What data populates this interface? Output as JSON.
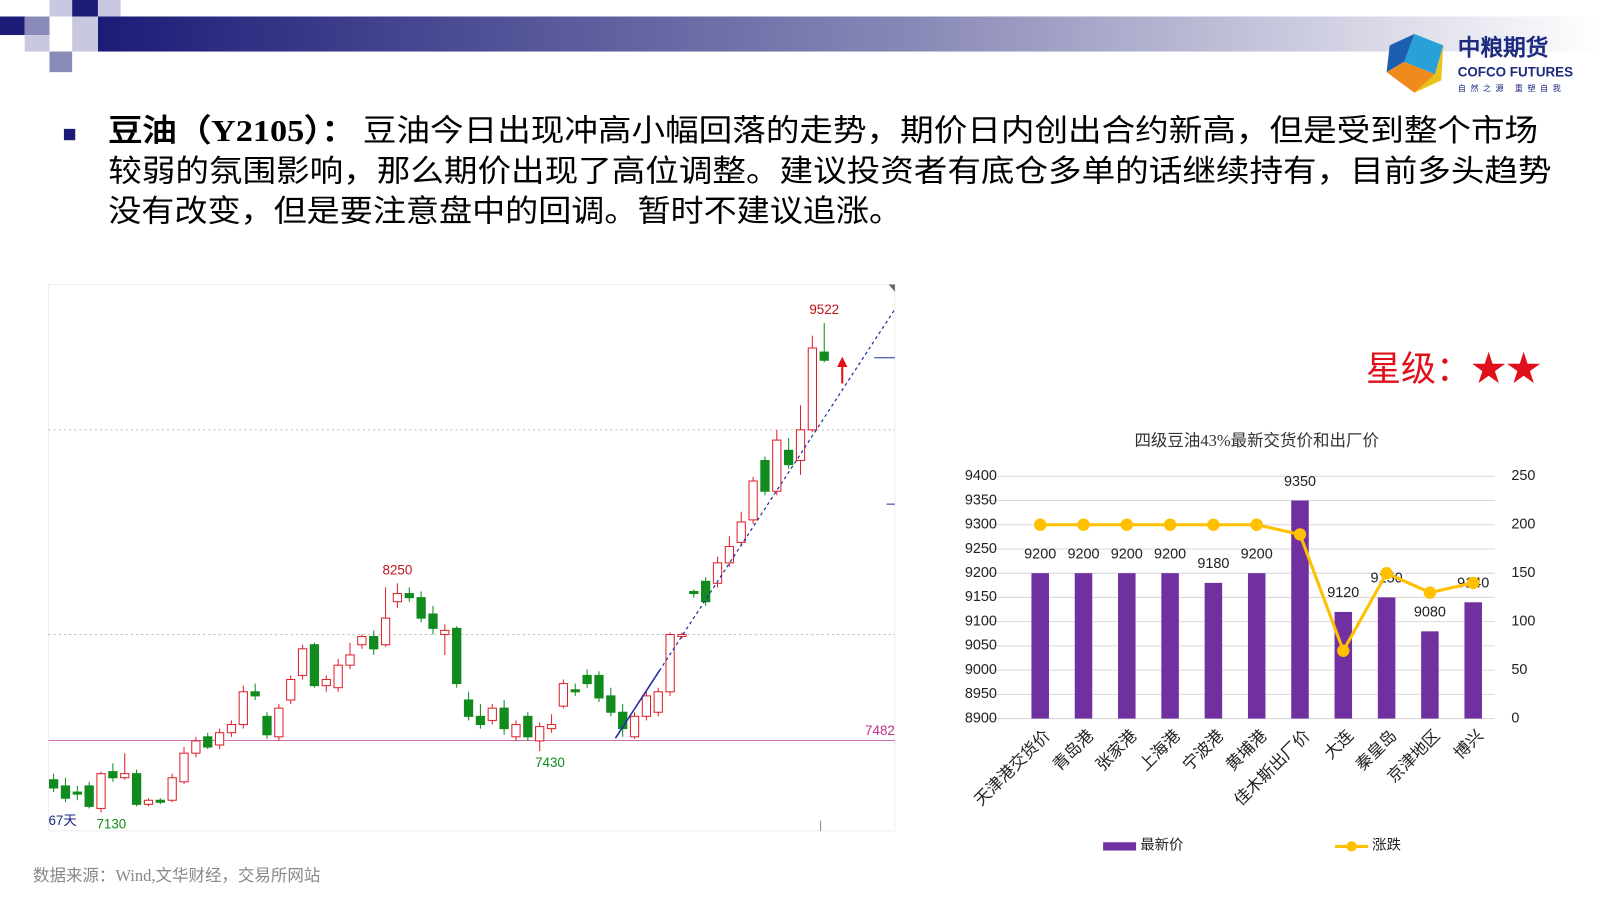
{
  "header": {
    "logo_cn": "中粮期货",
    "logo_en": "COFCO FUTURES",
    "logo_slogan": "自然之源 重塑自我"
  },
  "bullet": {
    "heading": "豆油（Y2105）：",
    "lines": [
      "豆油今日出现冲高小幅回落的走势，期价日内创出合约新高，但是受到整个市场",
      "较弱的氛围影响，那么期价出现了高位调整。建议投资者有底仓多单的话继续持有，目前多头趋势",
      "没有改变，但是要注意盘中的回调。暂时不建议追涨。"
    ]
  },
  "rating": "星级：★★",
  "source": "数据来源：Wind,文华财经，交易所网站",
  "chart_data": [
    {
      "type": "candlestick",
      "open": [
        7290,
        7260,
        7230,
        7260,
        7150,
        7330,
        7300,
        7320,
        7170,
        7190,
        7190,
        7280,
        7420,
        7500,
        7460,
        7520,
        7560,
        7720,
        7600,
        7500,
        7680,
        7800,
        7950,
        7750,
        7740,
        7850,
        7950,
        7990,
        7950,
        8160,
        8200,
        8180,
        8100,
        8000,
        8030,
        7680,
        7600,
        7580,
        7640,
        7500,
        7600,
        7480,
        7540,
        7650,
        7730,
        7800,
        7800,
        7700,
        7620,
        7500,
        7600,
        7620,
        7720,
        7990,
        8210,
        8260,
        8250,
        8350,
        8450,
        8560,
        8850,
        8700,
        8900,
        8850,
        9000,
        9380
      ],
      "close": [
        7250,
        7200,
        7220,
        7160,
        7320,
        7300,
        7320,
        7170,
        7190,
        7180,
        7300,
        7420,
        7480,
        7450,
        7520,
        7560,
        7720,
        7700,
        7510,
        7640,
        7780,
        7930,
        7750,
        7780,
        7850,
        7900,
        7990,
        7930,
        8080,
        8200,
        8180,
        8080,
        8030,
        8020,
        7760,
        7600,
        7560,
        7640,
        7540,
        7560,
        7500,
        7550,
        7560,
        7760,
        7720,
        7760,
        7690,
        7620,
        7540,
        7600,
        7700,
        7720,
        8000,
        8000,
        8200,
        8160,
        8350,
        8430,
        8550,
        8750,
        8700,
        8950,
        8830,
        9000,
        9400,
        9340
      ],
      "high": [
        7320,
        7300,
        7260,
        7280,
        7330,
        7370,
        7420,
        7340,
        7200,
        7200,
        7320,
        7450,
        7500,
        7520,
        7540,
        7580,
        7750,
        7760,
        7620,
        7660,
        7800,
        7950,
        7960,
        7800,
        7880,
        7960,
        8000,
        8020,
        8230,
        8250,
        8230,
        8210,
        8140,
        8050,
        8040,
        7720,
        7660,
        7660,
        7680,
        7580,
        7620,
        7570,
        7610,
        7780,
        7760,
        7830,
        7820,
        7740,
        7660,
        7620,
        7720,
        7740,
        8010,
        8010,
        8220,
        8280,
        8380,
        8480,
        8600,
        8770,
        8870,
        9000,
        8960,
        9120,
        9460,
        9522
      ],
      "low": [
        7230,
        7180,
        7190,
        7150,
        7130,
        7280,
        7290,
        7160,
        7160,
        7170,
        7180,
        7270,
        7400,
        7440,
        7440,
        7500,
        7540,
        7680,
        7490,
        7480,
        7660,
        7780,
        7740,
        7720,
        7720,
        7830,
        7930,
        7900,
        7940,
        8130,
        8160,
        8060,
        8000,
        7900,
        7740,
        7580,
        7540,
        7560,
        7510,
        7480,
        7480,
        7430,
        7520,
        7640,
        7700,
        7740,
        7670,
        7600,
        7500,
        7490,
        7580,
        7600,
        7700,
        7980,
        8180,
        8140,
        8230,
        8330,
        8430,
        8540,
        8680,
        8680,
        8810,
        8780,
        8990,
        9330
      ],
      "up_color": "#e0202a",
      "down_color": "#118a1e",
      "ylim": [
        7030,
        9700
      ],
      "grid_values": [
        8000,
        9000
      ],
      "support_line": 7482,
      "annotations": [
        9522,
        8250,
        7430,
        7130
      ],
      "period_label": "67天"
    },
    {
      "type": "bar-line",
      "title": "四级豆油43%最新交货价和出厂价",
      "categories": [
        "天津港交货价",
        "青岛港",
        "张家港",
        "上海港",
        "宁波港",
        "黄埔港",
        "佳木斯出厂价",
        "大连",
        "秦皇岛",
        "京津地区",
        "博兴"
      ],
      "series": [
        {
          "name": "最新价",
          "type": "bar",
          "color": "#7030a0",
          "values": [
            9200,
            9200,
            9200,
            9200,
            9180,
            9200,
            9350,
            9120,
            9150,
            9080,
            9140
          ]
        },
        {
          "name": "涨跌",
          "type": "line",
          "axis": "y2",
          "color": "#ffc000",
          "values": [
            200,
            200,
            200,
            200,
            200,
            200,
            190,
            70,
            150,
            130,
            140
          ]
        }
      ],
      "ylim": [
        8900,
        9400
      ],
      "yticks": [
        8900,
        8950,
        9000,
        9050,
        9100,
        9150,
        9200,
        9250,
        9300,
        9350,
        9400
      ],
      "y2lim": [
        0,
        250
      ],
      "y2ticks": [
        0,
        50,
        100,
        150,
        200,
        250
      ],
      "grid": true
    }
  ]
}
